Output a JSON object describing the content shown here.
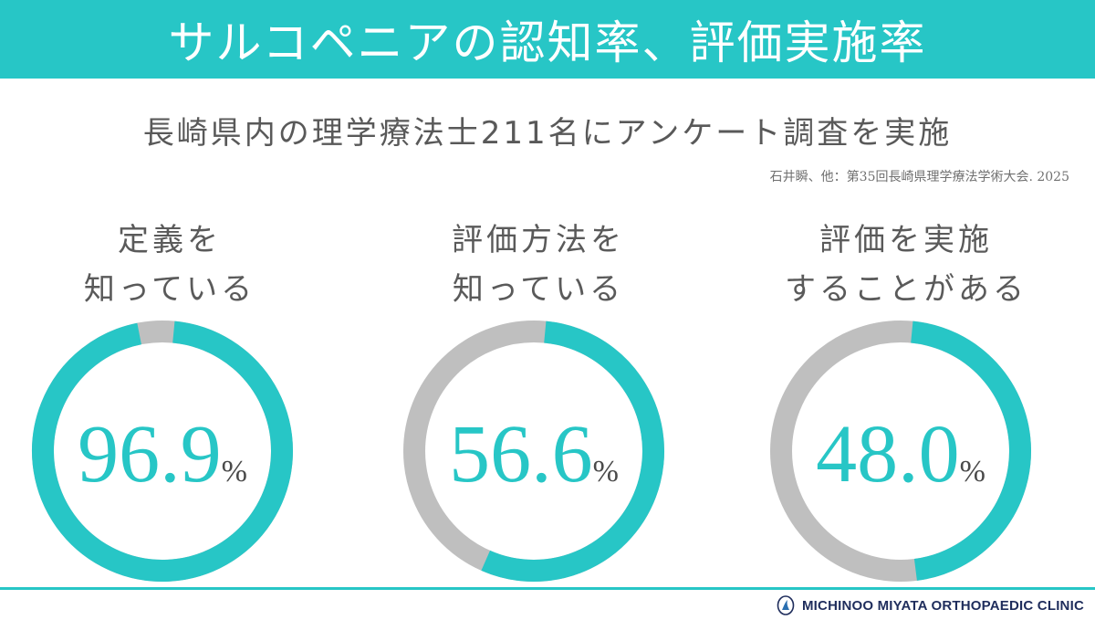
{
  "header": {
    "title": "サルコペニアの認知率、評価実施率"
  },
  "subtitle": "長崎県内の理学療法士211名にアンケート調査を実施",
  "citation": "石井瞬、他：第35回長崎県理学療法学術大会. 2025",
  "colors": {
    "accent": "#27c6c6",
    "track": "#bfbfbf"
  },
  "chart_data": [
    {
      "type": "pie",
      "title_lines": [
        "定義を",
        "知っている"
      ],
      "value": 96.9,
      "unit": "%",
      "value_label": "96.9",
      "unit_label": "%"
    },
    {
      "type": "pie",
      "title_lines": [
        "評価方法を",
        "知っている"
      ],
      "value": 56.6,
      "unit": "%",
      "value_label": "56.6",
      "unit_label": "%"
    },
    {
      "type": "pie",
      "title_lines": [
        "評価を実施",
        "することがある"
      ],
      "value": 48.0,
      "unit": "%",
      "value_label": "48.0",
      "unit_label": "%"
    }
  ],
  "footer": {
    "clinic_name": "MICHINOO MIYATA ORTHOPAEDIC CLINIC",
    "logo_icon": "clinic-logo-icon"
  }
}
